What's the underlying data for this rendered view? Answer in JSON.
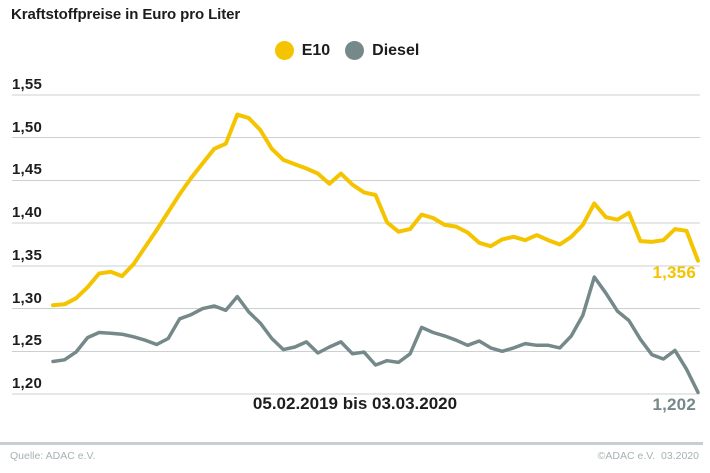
{
  "chart_data": {
    "type": "line",
    "title": "Kraftstoffpreise in Euro pro Liter",
    "x_range_label": "05.02.2019 bis 03.03.2020",
    "unit": "Euro pro Liter",
    "grid": "horizontal",
    "legend_position": "top-center",
    "y_axis": {
      "min": 1.2,
      "max": 1.55,
      "ticks": [
        "1,55",
        "1,50",
        "1,45",
        "1,40",
        "1,35",
        "1,30",
        "1,25",
        "1,20"
      ]
    },
    "series": [
      {
        "name": "E10",
        "color": "#f5c400",
        "end_label": "1,356",
        "values": [
          1.304,
          1.305,
          1.312,
          1.325,
          1.341,
          1.343,
          1.338,
          1.352,
          1.372,
          1.392,
          1.413,
          1.434,
          1.453,
          1.47,
          1.487,
          1.493,
          1.527,
          1.523,
          1.509,
          1.487,
          1.474,
          1.469,
          1.464,
          1.458,
          1.446,
          1.458,
          1.445,
          1.436,
          1.433,
          1.401,
          1.39,
          1.393,
          1.41,
          1.406,
          1.398,
          1.396,
          1.389,
          1.377,
          1.373,
          1.381,
          1.384,
          1.38,
          1.386,
          1.38,
          1.375,
          1.384,
          1.398,
          1.423,
          1.407,
          1.404,
          1.412,
          1.379,
          1.378,
          1.38,
          1.393,
          1.391,
          1.356
        ]
      },
      {
        "name": "Diesel",
        "color": "#75888a",
        "end_label": "1,202",
        "values": [
          1.238,
          1.24,
          1.249,
          1.266,
          1.272,
          1.271,
          1.27,
          1.267,
          1.263,
          1.258,
          1.265,
          1.288,
          1.293,
          1.3,
          1.303,
          1.298,
          1.314,
          1.296,
          1.283,
          1.265,
          1.252,
          1.255,
          1.261,
          1.248,
          1.255,
          1.261,
          1.247,
          1.249,
          1.234,
          1.239,
          1.237,
          1.247,
          1.278,
          1.272,
          1.268,
          1.263,
          1.257,
          1.262,
          1.254,
          1.25,
          1.254,
          1.259,
          1.257,
          1.257,
          1.254,
          1.268,
          1.292,
          1.337,
          1.318,
          1.297,
          1.286,
          1.264,
          1.246,
          1.241,
          1.251,
          1.229,
          1.202
        ]
      }
    ]
  },
  "footer": {
    "source": "Quelle: ADAC e.V.",
    "copyright": "©ADAC e.V.  03.2020"
  }
}
